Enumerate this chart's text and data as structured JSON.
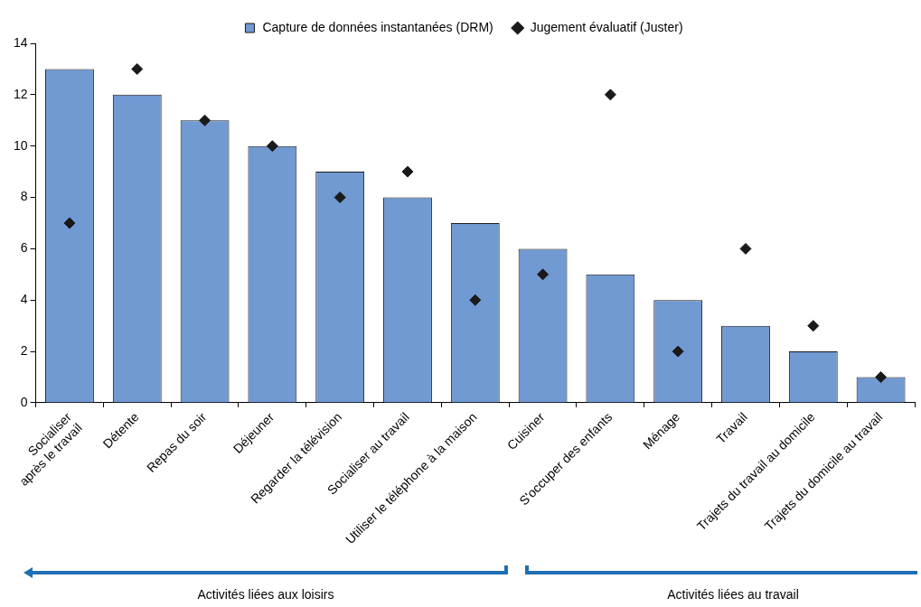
{
  "chart_data": {
    "type": "bar",
    "categories": [
      "Socialiser\naprès le travail",
      "Détente",
      "Repas du soir",
      "Déjeuner",
      "Regarder la télévision",
      "Socialiser au travail",
      "Utiliser le téléphone à la maison",
      "Cuisiner",
      "S'occuper des enfants",
      "Ménage",
      "Travail",
      "Trajets du travail au domicile",
      "Trajets du domicile au travail"
    ],
    "series": [
      {
        "name": "Capture de données instantanées (DRM)",
        "color": "#7199d2",
        "values": [
          13,
          12,
          11,
          10,
          9,
          8,
          7,
          6,
          5,
          4,
          3,
          2,
          1
        ]
      },
      {
        "name": "Jugement évaluatif (Juster)",
        "type": "scatter",
        "color": "#1a1a1a",
        "values": [
          7,
          13,
          11,
          10,
          8,
          9,
          4,
          5,
          12,
          2,
          6,
          3,
          1
        ]
      }
    ],
    "ylim": [
      0,
      14
    ],
    "yticks": [
      0,
      2,
      4,
      6,
      8,
      10,
      12,
      14
    ],
    "grid": false,
    "legend": "top",
    "marker": "diamond",
    "annotations": [
      "Activités liées aux loisirs",
      "Activités liées au travail"
    ]
  }
}
